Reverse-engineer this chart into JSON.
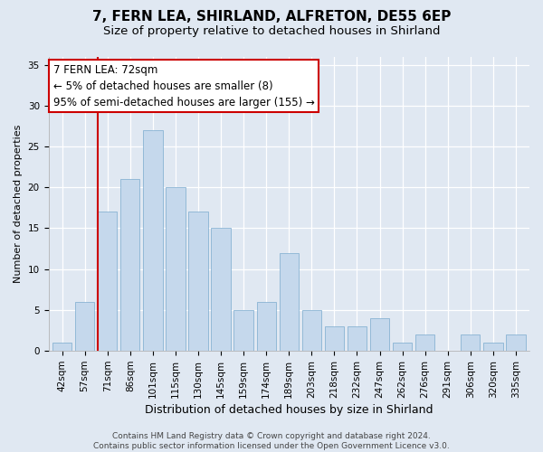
{
  "title1": "7, FERN LEA, SHIRLAND, ALFRETON, DE55 6EP",
  "title2": "Size of property relative to detached houses in Shirland",
  "xlabel": "Distribution of detached houses by size in Shirland",
  "ylabel": "Number of detached properties",
  "categories": [
    "42sqm",
    "57sqm",
    "71sqm",
    "86sqm",
    "101sqm",
    "115sqm",
    "130sqm",
    "145sqm",
    "159sqm",
    "174sqm",
    "189sqm",
    "203sqm",
    "218sqm",
    "232sqm",
    "247sqm",
    "262sqm",
    "276sqm",
    "291sqm",
    "306sqm",
    "320sqm",
    "335sqm"
  ],
  "values": [
    1,
    6,
    17,
    21,
    27,
    20,
    17,
    15,
    5,
    6,
    12,
    5,
    3,
    3,
    4,
    1,
    2,
    0,
    2,
    1,
    2
  ],
  "bar_color": "#c5d8ec",
  "bar_edge_color": "#7aaace",
  "highlight_line_index": 2,
  "highlight_line_color": "#cc0000",
  "annotation_text": "7 FERN LEA: 72sqm\n← 5% of detached houses are smaller (8)\n95% of semi-detached houses are larger (155) →",
  "annotation_box_facecolor": "#ffffff",
  "annotation_box_edgecolor": "#cc0000",
  "ylim": [
    0,
    36
  ],
  "yticks": [
    0,
    5,
    10,
    15,
    20,
    25,
    30,
    35
  ],
  "bg_color": "#e0e8f2",
  "plot_bg_color": "#e0e8f2",
  "footer_text": "Contains HM Land Registry data © Crown copyright and database right 2024.\nContains public sector information licensed under the Open Government Licence v3.0.",
  "title1_fontsize": 11,
  "title2_fontsize": 9.5,
  "xlabel_fontsize": 9,
  "ylabel_fontsize": 8,
  "tick_fontsize": 7.5,
  "annotation_fontsize": 8.5,
  "footer_fontsize": 6.5
}
